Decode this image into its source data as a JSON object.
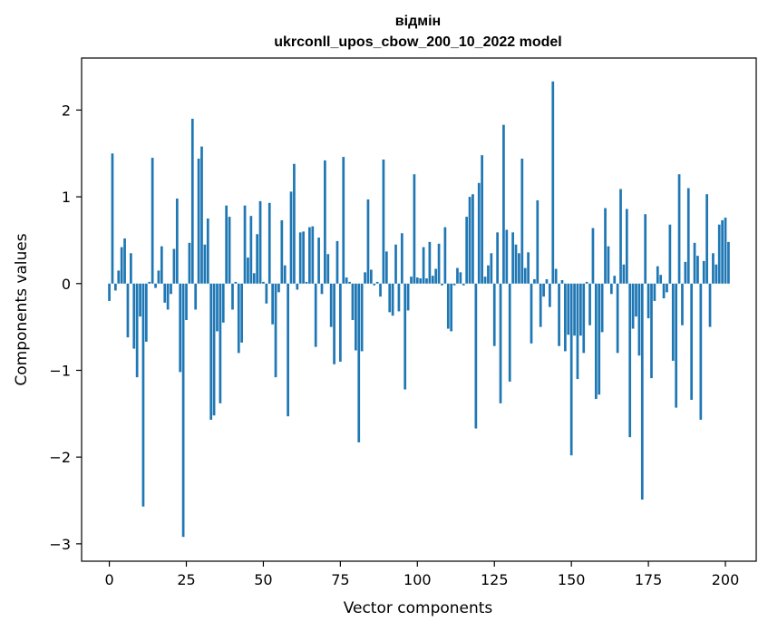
{
  "chart_data": {
    "type": "bar",
    "title_lines": [
      "відмін",
      "ukrconll_upos_cbow_200_10_2022 model"
    ],
    "xlabel": "Vector components",
    "ylabel": "Components values",
    "xlim": [
      -9,
      210
    ],
    "ylim": [
      -3.2,
      2.6
    ],
    "x_ticks": [
      0,
      25,
      50,
      75,
      100,
      125,
      150,
      175,
      200
    ],
    "y_ticks": [
      -3,
      -2,
      -1,
      0,
      1,
      2
    ],
    "y_tick_labels": [
      "−3",
      "−2",
      "−1",
      "0",
      "1",
      "2"
    ],
    "grid": false,
    "bar_color": "#1f77b4",
    "values": [
      -0.2,
      1.5,
      -0.08,
      0.15,
      0.42,
      0.52,
      -0.62,
      0.35,
      -0.75,
      -1.08,
      -0.38,
      -2.57,
      -0.67,
      0.02,
      1.45,
      -0.05,
      0.15,
      0.43,
      -0.22,
      -0.3,
      -0.12,
      0.4,
      0.98,
      -1.02,
      -2.92,
      -0.42,
      0.47,
      1.9,
      -0.3,
      1.44,
      1.58,
      0.45,
      0.75,
      -1.57,
      -1.52,
      -0.55,
      -1.38,
      -0.45,
      0.9,
      0.77,
      -0.3,
      0.02,
      -0.8,
      -0.68,
      0.9,
      0.3,
      0.78,
      0.12,
      0.57,
      0.95,
      0.02,
      -0.23,
      0.93,
      -0.47,
      -1.08,
      -0.1,
      0.73,
      0.21,
      -1.53,
      1.06,
      1.38,
      -0.07,
      0.59,
      0.6,
      0.02,
      0.65,
      0.66,
      -0.73,
      0.53,
      -0.12,
      1.42,
      0.34,
      -0.5,
      -0.93,
      0.49,
      -0.9,
      1.46,
      0.07,
      0.02,
      -0.42,
      -0.77,
      -1.83,
      -0.78,
      0.13,
      0.97,
      0.16,
      -0.02,
      0.02,
      -0.15,
      1.43,
      0.37,
      -0.33,
      -0.37,
      0.45,
      -0.32,
      0.58,
      -1.22,
      -0.31,
      0.08,
      1.26,
      0.07,
      0.06,
      0.42,
      0.06,
      0.48,
      0.09,
      0.17,
      0.46,
      -0.02,
      0.65,
      -0.52,
      -0.55,
      -0.02,
      0.18,
      0.13,
      -0.02,
      0.77,
      1.0,
      1.03,
      -1.67,
      1.16,
      1.48,
      0.08,
      0.21,
      0.35,
      -0.72,
      0.59,
      -1.38,
      1.83,
      0.62,
      -1.13,
      0.59,
      0.45,
      0.35,
      1.44,
      0.18,
      0.36,
      -0.69,
      0.05,
      0.96,
      -0.5,
      -0.15,
      0.05,
      -0.27,
      2.33,
      0.17,
      -0.72,
      0.04,
      -0.78,
      -0.59,
      -1.98,
      -0.6,
      -1.1,
      -0.6,
      -0.8,
      0.02,
      -0.48,
      0.64,
      -1.33,
      -1.28,
      -0.56,
      0.87,
      0.43,
      -0.12,
      0.09,
      -0.8,
      1.09,
      0.22,
      0.86,
      -1.77,
      -0.52,
      -0.38,
      -0.83,
      -2.49,
      0.8,
      -0.4,
      -1.09,
      -0.2,
      0.2,
      0.1,
      -0.17,
      -0.1,
      0.68,
      -0.89,
      -1.43,
      1.26,
      -0.48,
      0.25,
      1.1,
      -1.34,
      0.47,
      0.32,
      -1.57,
      0.26,
      1.03,
      -0.5,
      0.35,
      0.22,
      0.68,
      0.73,
      0.76,
      0.48
    ]
  }
}
